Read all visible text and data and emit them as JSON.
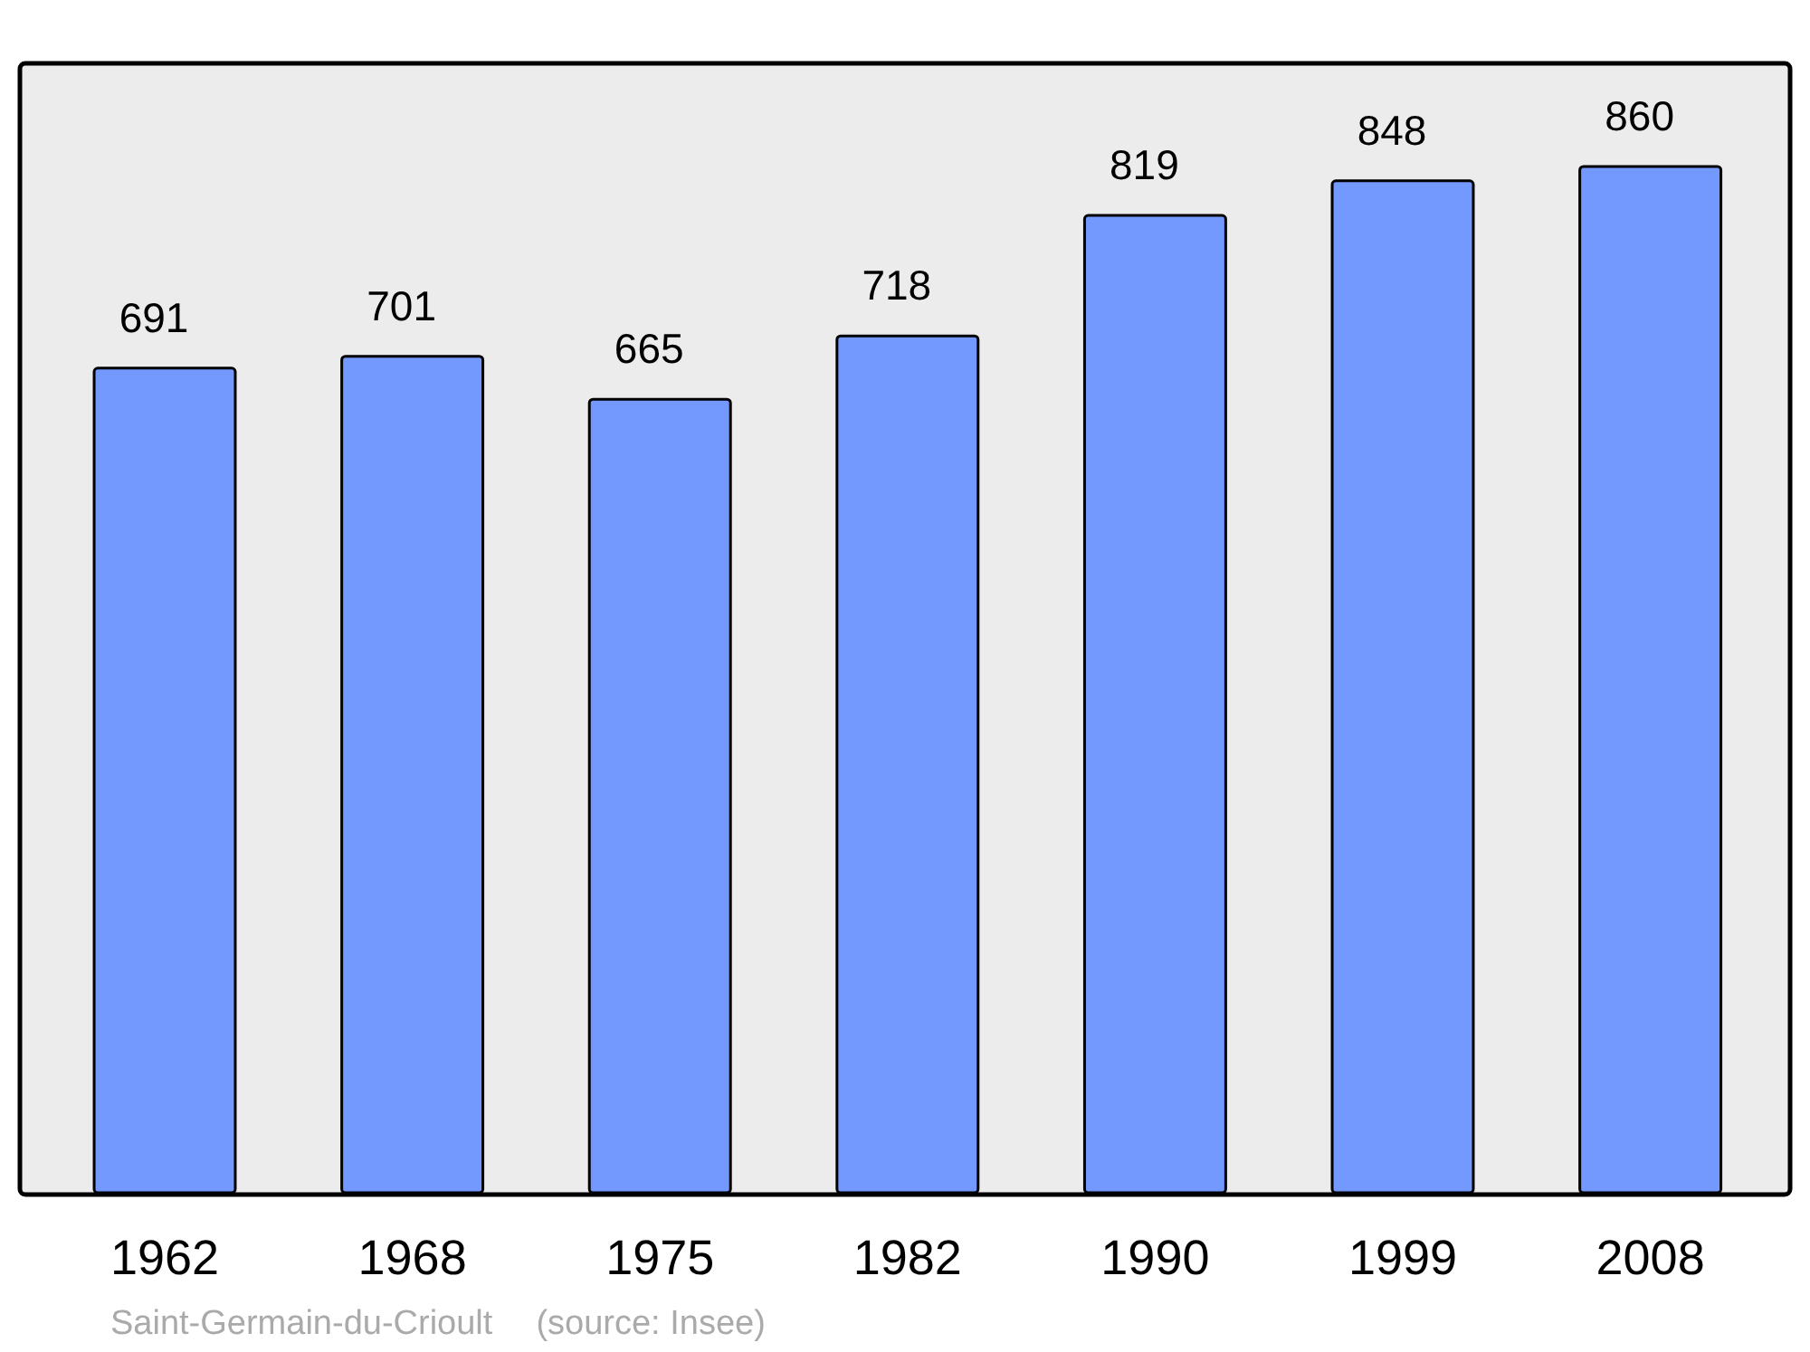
{
  "chart_data": {
    "type": "bar",
    "categories": [
      "1962",
      "1968",
      "1975",
      "1982",
      "1990",
      "1999",
      "2008"
    ],
    "values": [
      691,
      701,
      665,
      718,
      819,
      848,
      860
    ],
    "color": "#7399ff",
    "data_labels": true,
    "annotations": [
      "Saint-Germain-du-Crioult",
      "(source: Insee)"
    ]
  }
}
